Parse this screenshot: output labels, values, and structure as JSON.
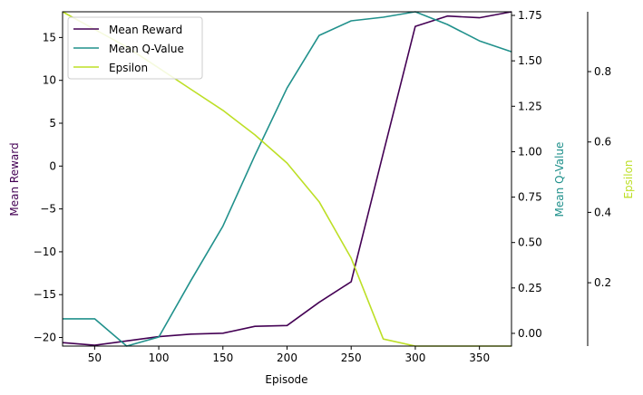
{
  "chart_data": {
    "type": "line",
    "xlabel": "Episode",
    "x": [
      25,
      50,
      75,
      100,
      125,
      150,
      175,
      200,
      225,
      250,
      275,
      300,
      325,
      350,
      375
    ],
    "xlim": [
      25,
      375
    ],
    "xticks": [
      50,
      100,
      150,
      200,
      250,
      300,
      350
    ],
    "axes": {
      "left": {
        "label": "Mean Reward",
        "color": "#440154",
        "lim": [
          -21,
          18
        ],
        "ticks": [
          15,
          10,
          5,
          0,
          -5,
          -10,
          -15,
          -20
        ],
        "tick_labels": [
          "15",
          "10",
          "5",
          "0",
          "−5",
          "−10",
          "−15",
          "−20"
        ]
      },
      "right": {
        "label": "Mean Q-Value",
        "color": "#21918c",
        "lim": [
          -0.07,
          1.77
        ],
        "ticks": [
          1.75,
          1.5,
          1.25,
          1.0,
          0.75,
          0.5,
          0.25,
          0.0
        ],
        "tick_labels": [
          "1.75",
          "1.50",
          "1.25",
          "1.00",
          "0.75",
          "0.50",
          "0.25",
          "0.00"
        ]
      },
      "far_right": {
        "label": "Epsilon",
        "color": "#bddf26",
        "lim": [
          0.02,
          0.97
        ],
        "ticks": [
          0.8,
          0.6,
          0.4,
          0.2
        ],
        "tick_labels": [
          "0.8",
          "0.6",
          "0.4",
          "0.2"
        ]
      }
    },
    "series": [
      {
        "name": "Mean Reward",
        "axis": "left",
        "color": "#440154",
        "values": [
          -20.6,
          -20.9,
          -20.4,
          -19.9,
          -19.6,
          -19.5,
          -18.7,
          -18.6,
          -15.9,
          -13.5,
          1.5,
          16.3,
          17.5,
          17.3,
          18.0
        ]
      },
      {
        "name": "Mean Q-Value",
        "axis": "right",
        "color": "#21918c",
        "values": [
          0.08,
          0.08,
          -0.07,
          -0.02,
          0.29,
          0.59,
          0.98,
          1.35,
          1.64,
          1.72,
          1.74,
          1.77,
          1.7,
          1.61,
          1.55
        ]
      },
      {
        "name": "Epsilon",
        "axis": "far_right",
        "color": "#bddf26",
        "values": [
          0.97,
          0.92,
          0.87,
          0.81,
          0.75,
          0.69,
          0.62,
          0.54,
          0.43,
          0.27,
          0.04,
          0.02,
          0.02,
          0.02,
          0.02
        ]
      }
    ],
    "legend": {
      "placement": "top-left",
      "entries": [
        "Mean Reward",
        "Mean Q-Value",
        "Epsilon"
      ]
    },
    "grid": false
  }
}
